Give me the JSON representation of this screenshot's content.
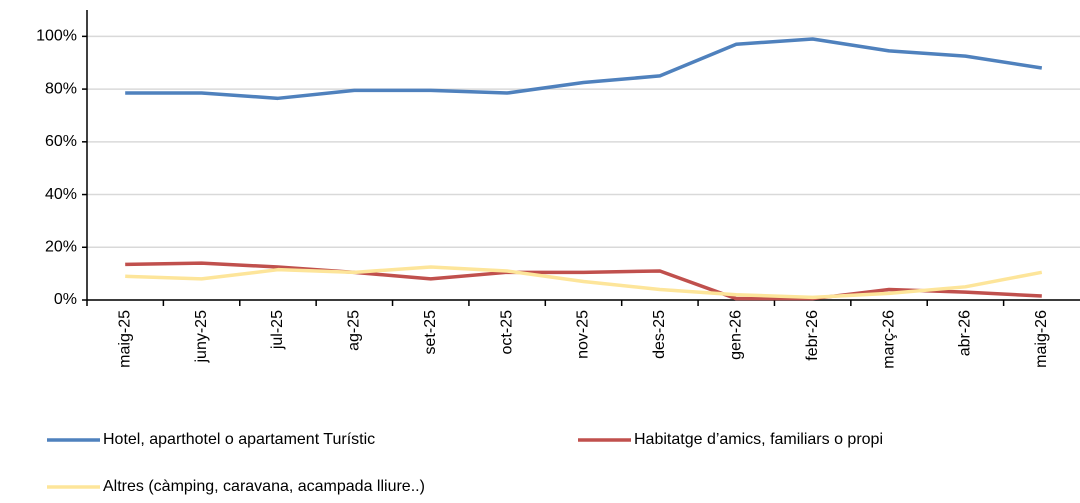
{
  "chart_data": {
    "type": "line",
    "categories": [
      "maig-25",
      "juny-25",
      "jul-25",
      "ag-25",
      "set-25",
      "oct-25",
      "nov-25",
      "des-25",
      "gen-26",
      "febr-26",
      "març-26",
      "abr-26",
      "maig-26"
    ],
    "series": [
      {
        "name": "Hotel, aparthotel o apartament Turístic",
        "color": "#4f81bd",
        "values": [
          78.5,
          78.5,
          76.5,
          79.5,
          79.5,
          78.5,
          82.5,
          85,
          97,
          99,
          94.5,
          92.5,
          88
        ]
      },
      {
        "name": "Habitatge d’amics, familiars o propi",
        "color": "#c0504d",
        "values": [
          13.5,
          14,
          12.5,
          10.5,
          8,
          10.5,
          10.5,
          11,
          0.5,
          0.5,
          4,
          3,
          1.5
        ]
      },
      {
        "name": "Altres (càmping, caravana, acampada lliure..)",
        "color": "#fde59a",
        "values": [
          9,
          8,
          11.5,
          10.5,
          12.5,
          11,
          7,
          4,
          2,
          1,
          2.5,
          5,
          10.5
        ]
      }
    ],
    "ylim": [
      0,
      110
    ],
    "yticks": [
      {
        "value": 0,
        "label": "0%"
      },
      {
        "value": 20,
        "label": "20%"
      },
      {
        "value": 40,
        "label": "40%"
      },
      {
        "value": 60,
        "label": "60%"
      },
      {
        "value": 80,
        "label": "80%"
      },
      {
        "value": 100,
        "label": "100%"
      }
    ],
    "grid": true
  }
}
